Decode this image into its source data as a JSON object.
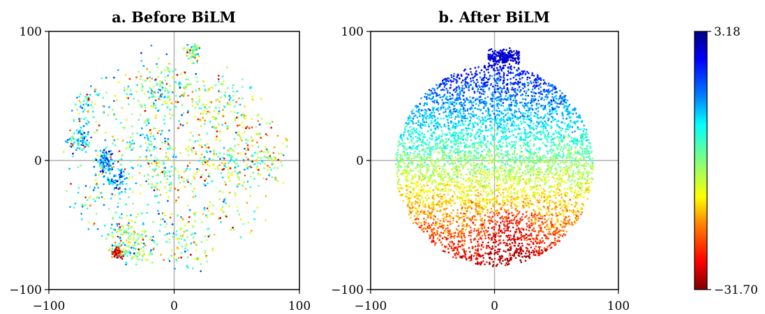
{
  "chart_data": [
    {
      "type": "scatter",
      "title": "a. Before BiLM",
      "xlim": [
        -100,
        100
      ],
      "ylim": [
        -100,
        100
      ],
      "xticks": [
        "−100",
        "0",
        "100"
      ],
      "yticks": [
        "100",
        "0",
        "−100"
      ],
      "xtick_values": [
        -100,
        0,
        100
      ],
      "ytick_values": [
        100,
        0,
        -100
      ],
      "crosshair_lines": {
        "x": 0,
        "y": 0
      },
      "distribution": "clustered islands; colors mostly green/cyan with scattered red/orange points",
      "point_count": 4200,
      "approx_color_value_range": [
        -31.7,
        3.18
      ]
    },
    {
      "type": "scatter",
      "title": "b. After BiLM",
      "xlim": [
        -100,
        100
      ],
      "ylim": [
        -100,
        100
      ],
      "xticks": [
        "−100",
        "0",
        "100"
      ],
      "yticks": [
        "100",
        "0",
        "−100"
      ],
      "xtick_values": [
        -100,
        0,
        100
      ],
      "ytick_values": [
        100,
        0,
        -100
      ],
      "crosshair_lines": {
        "x": 0,
        "y": 0
      },
      "distribution": "single round blob; blue at top grading to red at bottom",
      "point_count": 6500,
      "approx_color_value_range": [
        -31.7,
        3.18
      ]
    }
  ],
  "colorbar": {
    "colormap": "jet",
    "max_label": "3.18",
    "min_label": "−31.70",
    "max": 3.18,
    "min": -31.7,
    "colors_top_to_bottom": [
      "#00007f",
      "#0000ff",
      "#007fff",
      "#00ffff",
      "#7fff7f",
      "#ffff00",
      "#ff7f00",
      "#ff0000",
      "#7f0000"
    ]
  }
}
